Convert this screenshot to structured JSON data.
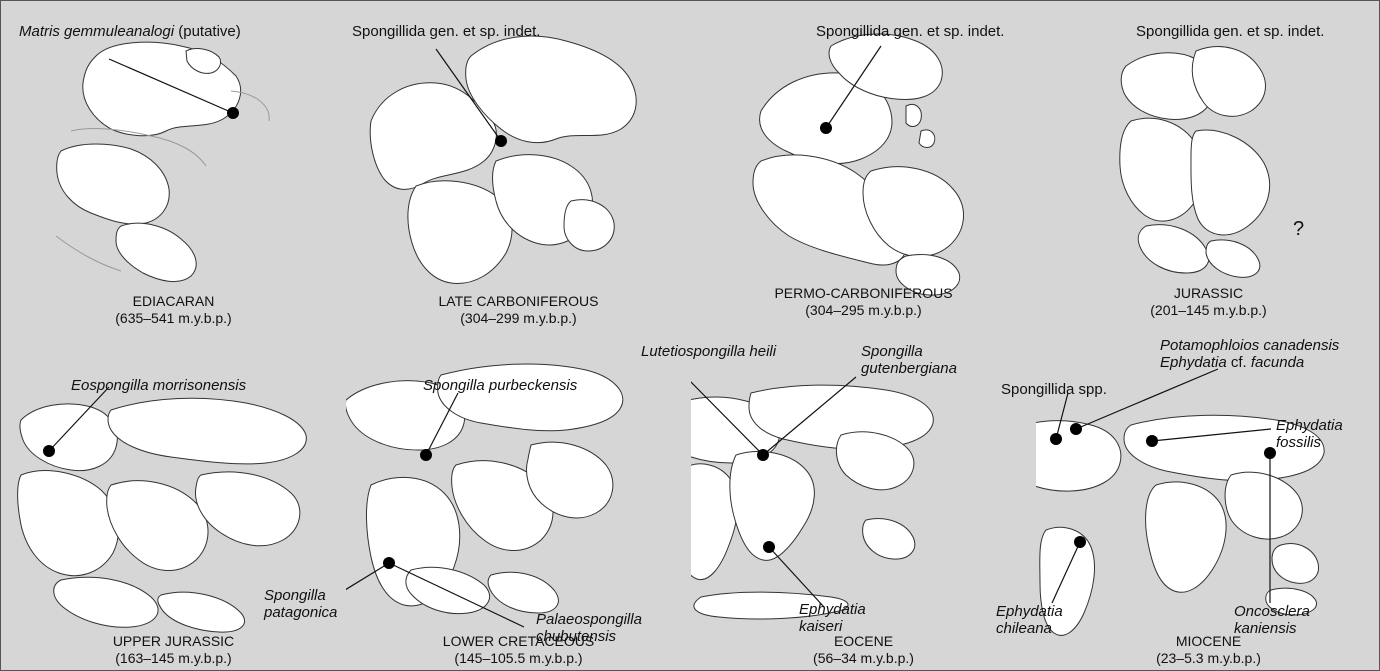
{
  "figure": {
    "panels": [
      {
        "id": "ediacaran",
        "period": "EDIACARAN",
        "range": "(635–541 m.y.b.p.)",
        "labels": [
          {
            "name": "matris-gemmuleanalogi-label",
            "italic": "Matris gemmuleanalogi",
            "plain": " (putative)"
          }
        ]
      },
      {
        "id": "late-carboniferous",
        "period": "LATE CARBONIFEROUS",
        "range": "(304–299 m.y.b.p.)",
        "labels": [
          {
            "name": "spongillida-indet-label",
            "italic": "",
            "plain": "Spongillida gen. et sp. indet."
          }
        ]
      },
      {
        "id": "permo-carboniferous",
        "period": "PERMO-CARBONIFEROUS",
        "range": "(304–295 m.y.b.p.)",
        "labels": [
          {
            "name": "spongillida-indet-label",
            "italic": "",
            "plain": "Spongillida gen. et sp. indet."
          }
        ]
      },
      {
        "id": "jurassic",
        "period": "JURASSIC",
        "range": "(201–145 m.y.b.p.)",
        "labels": [
          {
            "name": "spongillida-indet-label",
            "italic": "",
            "plain": "Spongillida gen. et sp. indet."
          }
        ],
        "question_mark": "?"
      },
      {
        "id": "upper-jurassic",
        "period": "UPPER JURASSIC",
        "range": "(163–145 m.y.b.p.)",
        "labels": [
          {
            "name": "eospongilla-label",
            "italic": "Eospongilla morrisonensis",
            "plain": ""
          }
        ]
      },
      {
        "id": "lower-cretaceous",
        "period": "LOWER CRETACEOUS",
        "range": "(145–105.5 m.y.b.p.)",
        "labels": [
          {
            "name": "spongilla-purbeckensis-label",
            "italic": "Spongilla purbeckensis",
            "plain": ""
          },
          {
            "name": "spongilla-patagonica-label",
            "italic": "Spongilla\npatagonica",
            "plain": ""
          },
          {
            "name": "palaeospongilla-label",
            "italic": "Palaeospongilla\nchubutensis",
            "plain": ""
          }
        ]
      },
      {
        "id": "eocene",
        "period": "EOCENE",
        "range": "(56–34 m.y.b.p.)",
        "labels": [
          {
            "name": "lutetiospongilla-label",
            "italic": "Lutetiospongilla heili",
            "plain": ""
          },
          {
            "name": "spongilla-gutenbergiana-label",
            "italic": "Spongilla\ngutenbergiana",
            "plain": ""
          },
          {
            "name": "ephydatia-kaiseri-label",
            "italic": "Ephydatia\nkaiseri",
            "plain": ""
          }
        ]
      },
      {
        "id": "miocene",
        "period": "MIOCENE",
        "range": "(23–5.3 m.y.b.p.)",
        "labels": [
          {
            "name": "spongillida-spp-label",
            "italic": "",
            "plain": "Spongillida spp."
          },
          {
            "name": "potamophloios-label",
            "italic": "Potamophloios canadensis",
            "plain": ""
          },
          {
            "name": "ephydatia-facunda-label",
            "italic": "Ephydatia",
            "plain": " cf. ",
            "italic2": "facunda"
          },
          {
            "name": "ephydatia-fossilis-label",
            "italic": "Ephydatia\nfossilis",
            "plain": ""
          },
          {
            "name": "ephydatia-chileana-label",
            "italic": "Ephydatia\nchileana",
            "plain": ""
          },
          {
            "name": "oncosclera-label",
            "italic": "Oncosclera\nkaniensis",
            "plain": ""
          }
        ]
      }
    ]
  }
}
